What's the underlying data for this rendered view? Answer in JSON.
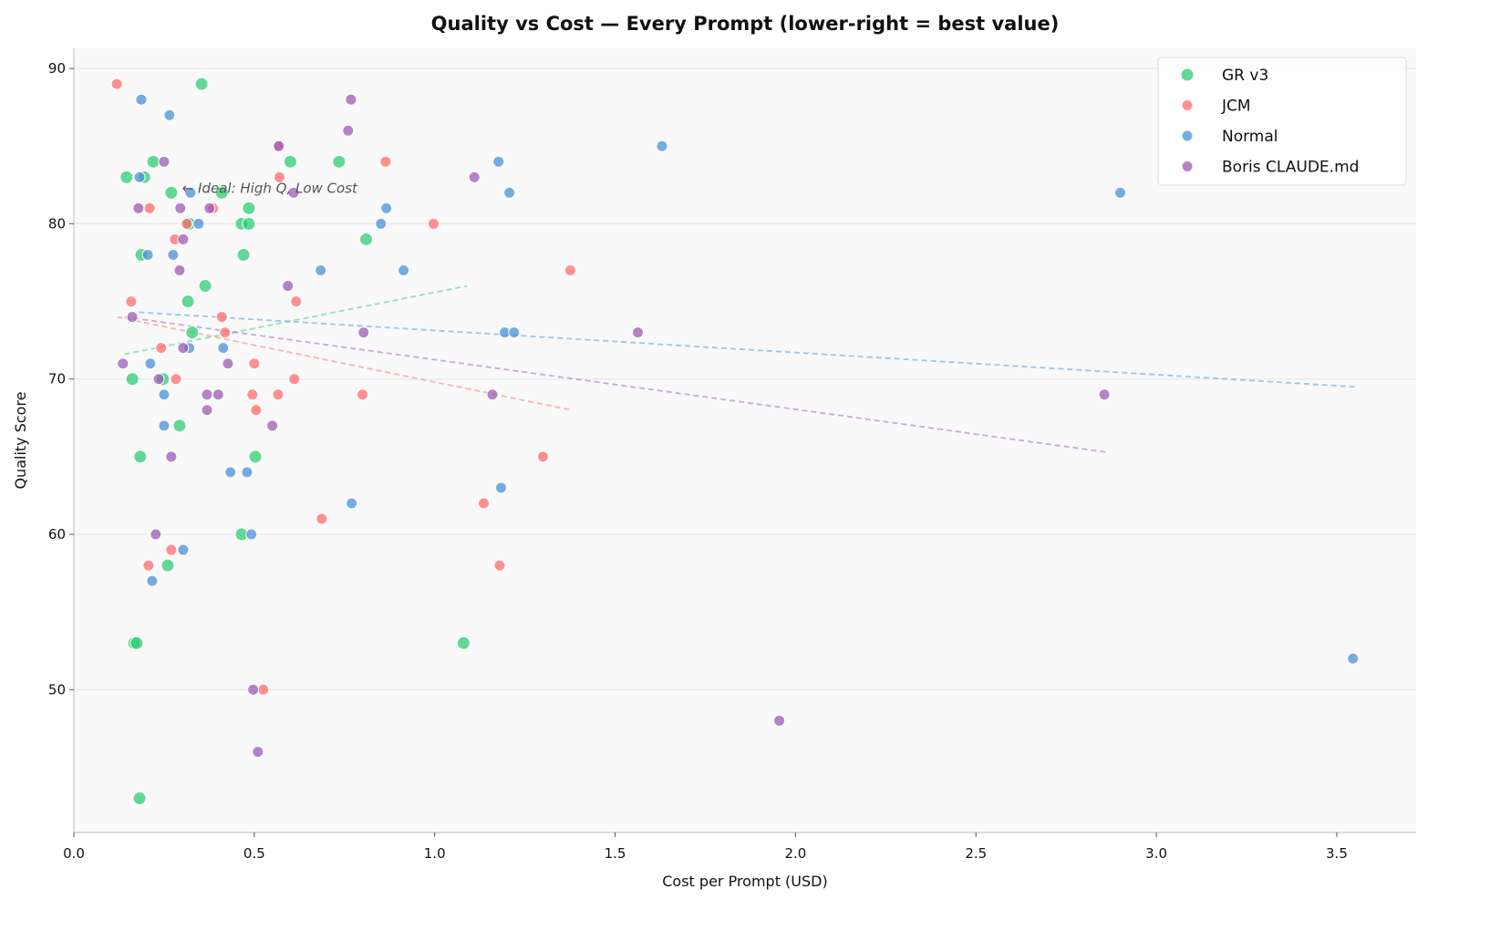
{
  "chart_data": {
    "type": "scatter",
    "title": "Quality vs Cost — Every Prompt (lower-right = best value)",
    "xlabel": "Cost per Prompt (USD)",
    "ylabel": "Quality Score",
    "xlim": [
      0,
      3.72
    ],
    "ylim": [
      40.8,
      91.3
    ],
    "xticks": [
      "0.0",
      "0.5",
      "1.0",
      "1.5",
      "2.0",
      "2.5",
      "3.0",
      "3.5"
    ],
    "yticks": [
      "50",
      "60",
      "70",
      "80",
      "90"
    ],
    "grid": "horizontal",
    "legend_position": "top-right",
    "annotation": {
      "text": "← Ideal: High Q, Low Cost",
      "x": 0.3,
      "y": 82.3
    },
    "series": [
      {
        "name": "GR v3",
        "color": "#2ecc71",
        "points": [
          [
            0.354,
            89
          ],
          [
            0.146,
            83
          ],
          [
            0.195,
            83
          ],
          [
            0.22,
            84
          ],
          [
            0.6,
            84
          ],
          [
            0.735,
            84
          ],
          [
            0.27,
            82
          ],
          [
            0.41,
            82
          ],
          [
            0.485,
            81
          ],
          [
            0.465,
            80
          ],
          [
            0.485,
            80
          ],
          [
            0.32,
            80
          ],
          [
            0.81,
            79
          ],
          [
            0.187,
            78
          ],
          [
            0.47,
            78
          ],
          [
            0.364,
            76
          ],
          [
            0.316,
            75
          ],
          [
            0.328,
            73
          ],
          [
            0.162,
            70
          ],
          [
            0.247,
            70
          ],
          [
            0.293,
            67
          ],
          [
            0.184,
            65
          ],
          [
            0.503,
            65
          ],
          [
            0.465,
            60
          ],
          [
            0.26,
            58
          ],
          [
            0.167,
            53
          ],
          [
            0.174,
            53
          ],
          [
            1.08,
            53
          ],
          [
            0.182,
            43
          ]
        ],
        "trend": [
          [
            0.14,
            71.6
          ],
          [
            1.09,
            76.0
          ]
        ]
      },
      {
        "name": "JCM",
        "color": "#ff6b6b",
        "points": [
          [
            0.119,
            89
          ],
          [
            0.566,
            85
          ],
          [
            0.57,
            83
          ],
          [
            0.864,
            84
          ],
          [
            0.21,
            81
          ],
          [
            0.386,
            81
          ],
          [
            0.313,
            80
          ],
          [
            0.997,
            80
          ],
          [
            0.28,
            79
          ],
          [
            1.376,
            77
          ],
          [
            0.159,
            75
          ],
          [
            0.616,
            75
          ],
          [
            0.41,
            74
          ],
          [
            0.419,
            73
          ],
          [
            0.242,
            72
          ],
          [
            0.5,
            71
          ],
          [
            0.283,
            70
          ],
          [
            0.611,
            70
          ],
          [
            0.495,
            69
          ],
          [
            0.566,
            69
          ],
          [
            0.8,
            69
          ],
          [
            0.505,
            68
          ],
          [
            1.3,
            65
          ],
          [
            1.136,
            62
          ],
          [
            0.687,
            61
          ],
          [
            0.27,
            59
          ],
          [
            0.207,
            58
          ],
          [
            1.18,
            58
          ],
          [
            0.525,
            50
          ]
        ],
        "trend": [
          [
            0.12,
            74.0
          ],
          [
            1.38,
            68.0
          ]
        ]
      },
      {
        "name": "Normal",
        "color": "#4a90d9",
        "points": [
          [
            0.187,
            88
          ],
          [
            0.265,
            87
          ],
          [
            1.63,
            85
          ],
          [
            1.177,
            84
          ],
          [
            0.182,
            83
          ],
          [
            0.323,
            82
          ],
          [
            1.207,
            82
          ],
          [
            2.9,
            82
          ],
          [
            0.866,
            81
          ],
          [
            0.346,
            80
          ],
          [
            0.851,
            80
          ],
          [
            0.205,
            78
          ],
          [
            0.275,
            78
          ],
          [
            0.684,
            77
          ],
          [
            0.914,
            77
          ],
          [
            1.194,
            73
          ],
          [
            1.22,
            73
          ],
          [
            0.32,
            72
          ],
          [
            0.414,
            72
          ],
          [
            0.212,
            71
          ],
          [
            0.25,
            69
          ],
          [
            0.25,
            67
          ],
          [
            0.434,
            64
          ],
          [
            0.48,
            64
          ],
          [
            1.184,
            63
          ],
          [
            0.77,
            62
          ],
          [
            0.492,
            60
          ],
          [
            0.303,
            59
          ],
          [
            0.217,
            57
          ],
          [
            3.545,
            52
          ]
        ],
        "trend": [
          [
            0.18,
            74.3
          ],
          [
            3.55,
            69.5
          ]
        ]
      },
      {
        "name": "Boris CLAUDE.md",
        "color": "#9b59b6",
        "points": [
          [
            0.768,
            88
          ],
          [
            0.76,
            86
          ],
          [
            0.568,
            85
          ],
          [
            0.25,
            84
          ],
          [
            1.11,
            83
          ],
          [
            0.609,
            82
          ],
          [
            0.179,
            81
          ],
          [
            0.295,
            81
          ],
          [
            0.376,
            81
          ],
          [
            0.303,
            79
          ],
          [
            0.293,
            77
          ],
          [
            0.593,
            76
          ],
          [
            0.162,
            74
          ],
          [
            0.803,
            73
          ],
          [
            1.563,
            73
          ],
          [
            0.303,
            72
          ],
          [
            0.136,
            71
          ],
          [
            0.427,
            71
          ],
          [
            0.235,
            70
          ],
          [
            0.369,
            69
          ],
          [
            0.4,
            69
          ],
          [
            1.16,
            69
          ],
          [
            2.856,
            69
          ],
          [
            0.369,
            68
          ],
          [
            0.55,
            67
          ],
          [
            0.27,
            65
          ],
          [
            0.227,
            60
          ],
          [
            0.497,
            50
          ],
          [
            1.955,
            48
          ],
          [
            0.51,
            46
          ]
        ],
        "trend": [
          [
            0.14,
            74.0
          ],
          [
            2.86,
            65.3
          ]
        ]
      }
    ]
  }
}
